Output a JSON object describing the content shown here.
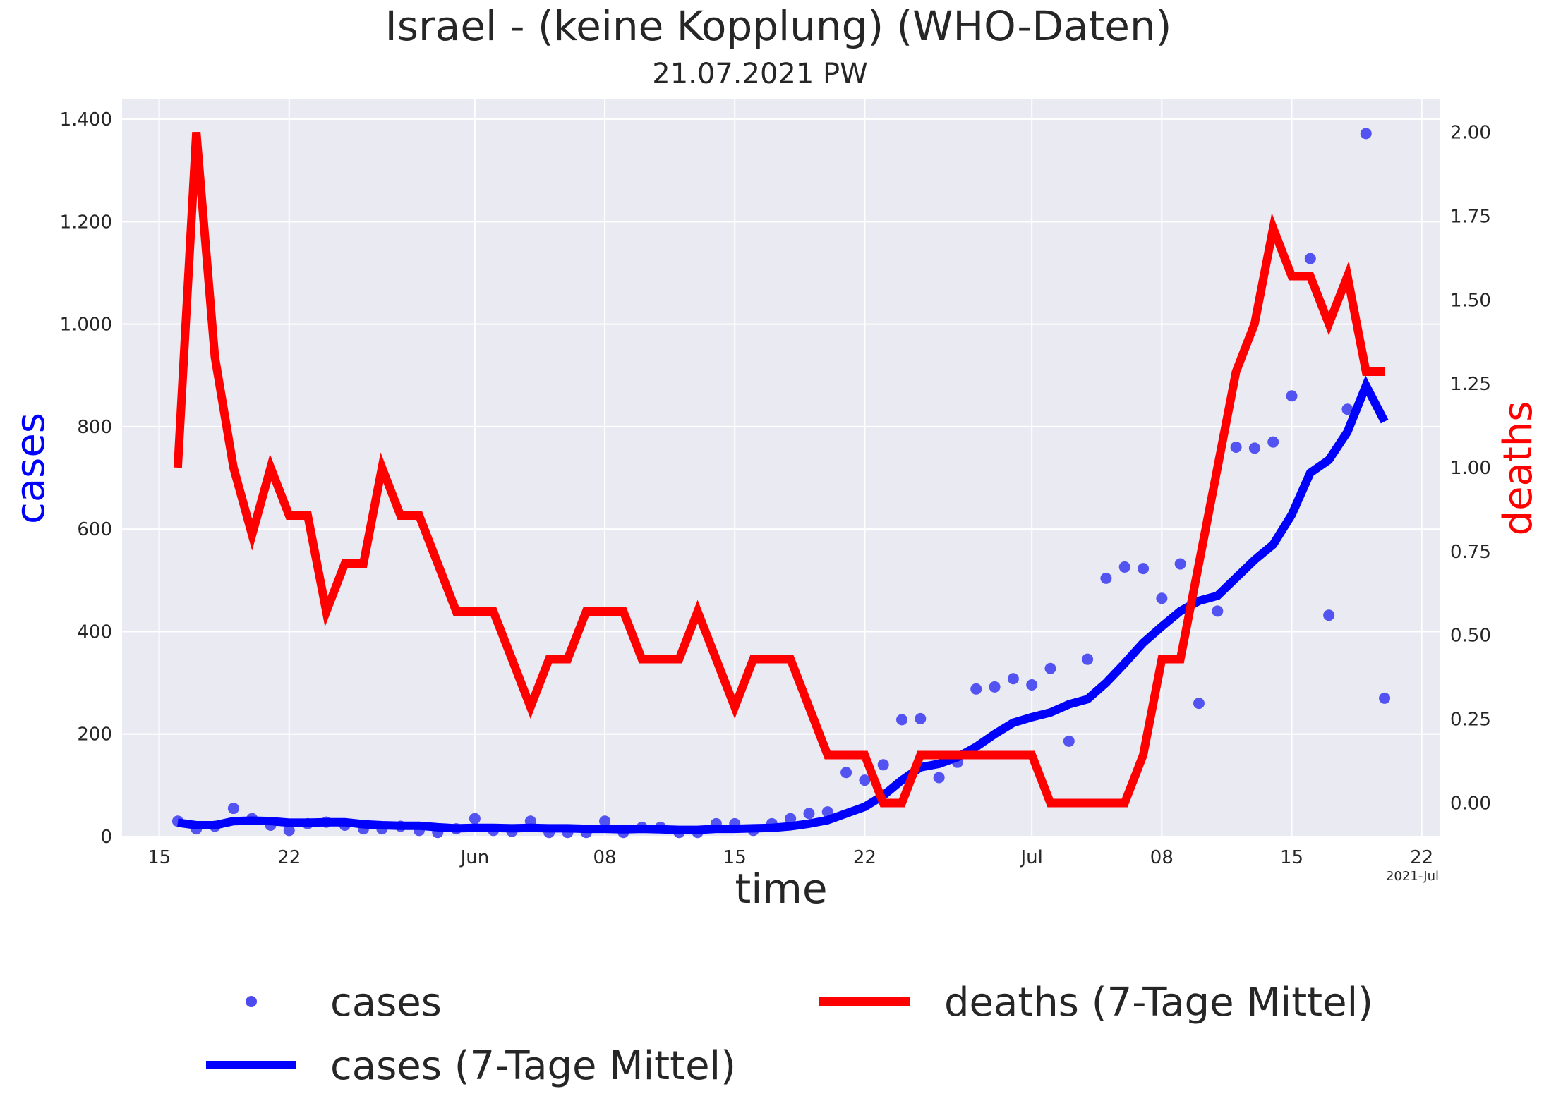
{
  "chart_data": {
    "type": "line",
    "title": "Israel - (keine Kopplung)  (WHO-Daten)",
    "subtitle": "21.07.2021 PW",
    "xlabel": "time",
    "ylabel_left": "cases",
    "ylabel_right": "deaths",
    "x_corner_label": "2021-Jul",
    "x_ticks": [
      {
        "date": "2021-05-15",
        "label": "15"
      },
      {
        "date": "2021-05-22",
        "label": "22"
      },
      {
        "date": "2021-06-01",
        "label": "Jun"
      },
      {
        "date": "2021-06-08",
        "label": "08"
      },
      {
        "date": "2021-06-15",
        "label": "15"
      },
      {
        "date": "2021-06-22",
        "label": "22"
      },
      {
        "date": "2021-07-01",
        "label": "Jul"
      },
      {
        "date": "2021-07-08",
        "label": "08"
      },
      {
        "date": "2021-07-15",
        "label": "15"
      },
      {
        "date": "2021-07-22",
        "label": "22"
      }
    ],
    "xlim": [
      "2021-05-13",
      "2021-07-23"
    ],
    "y_left": {
      "lim": [
        0,
        1440
      ],
      "ticks": [
        0,
        200,
        400,
        600,
        800,
        1000,
        1200,
        1400
      ],
      "tick_labels": [
        "0",
        "200",
        "400",
        "600",
        "800",
        "1.000",
        "1.200",
        "1.400"
      ]
    },
    "y_right": {
      "lim": [
        -0.1,
        2.1
      ],
      "ticks": [
        0.0,
        0.25,
        0.5,
        0.75,
        1.0,
        1.25,
        1.5,
        1.75,
        2.0
      ],
      "tick_labels": [
        "0.00",
        "0.25",
        "0.50",
        "0.75",
        "1.00",
        "1.25",
        "1.50",
        "1.75",
        "2.00"
      ]
    },
    "grid": true,
    "legend_position": "bottom",
    "colors": {
      "cases_dots": "#4b4bf0",
      "cases_avg": "#0000ff",
      "deaths_avg": "#ff0000",
      "plot_bg": "#eaeaf2",
      "grid": "#ffffff"
    },
    "series": [
      {
        "name": "cases",
        "kind": "scatter",
        "axis": "left",
        "x": [
          "2021-05-16",
          "2021-05-17",
          "2021-05-18",
          "2021-05-19",
          "2021-05-20",
          "2021-05-21",
          "2021-05-22",
          "2021-05-23",
          "2021-05-24",
          "2021-05-25",
          "2021-05-26",
          "2021-05-27",
          "2021-05-28",
          "2021-05-29",
          "2021-05-30",
          "2021-05-31",
          "2021-06-01",
          "2021-06-02",
          "2021-06-03",
          "2021-06-04",
          "2021-06-05",
          "2021-06-06",
          "2021-06-07",
          "2021-06-08",
          "2021-06-09",
          "2021-06-10",
          "2021-06-11",
          "2021-06-12",
          "2021-06-13",
          "2021-06-14",
          "2021-06-15",
          "2021-06-16",
          "2021-06-17",
          "2021-06-18",
          "2021-06-19",
          "2021-06-20",
          "2021-06-21",
          "2021-06-22",
          "2021-06-23",
          "2021-06-24",
          "2021-06-25",
          "2021-06-26",
          "2021-06-27",
          "2021-06-28",
          "2021-06-29",
          "2021-06-30",
          "2021-07-01",
          "2021-07-02",
          "2021-07-03",
          "2021-07-04",
          "2021-07-05",
          "2021-07-06",
          "2021-07-07",
          "2021-07-08",
          "2021-07-09",
          "2021-07-10",
          "2021-07-11",
          "2021-07-12",
          "2021-07-13",
          "2021-07-14",
          "2021-07-15",
          "2021-07-16",
          "2021-07-17",
          "2021-07-18",
          "2021-07-19",
          "2021-07-20"
        ],
        "values": [
          30,
          15,
          20,
          55,
          35,
          22,
          12,
          25,
          28,
          22,
          15,
          15,
          20,
          12,
          8,
          15,
          35,
          12,
          10,
          30,
          8,
          8,
          8,
          30,
          8,
          18,
          18,
          8,
          8,
          25,
          25,
          12,
          25,
          35,
          45,
          48,
          125,
          110,
          140,
          228,
          230,
          115,
          145,
          288,
          292,
          308,
          296,
          328,
          186,
          346,
          504,
          526,
          523,
          465,
          532,
          260,
          440,
          760,
          758,
          770,
          860,
          1128,
          432,
          834,
          1372,
          270
        ]
      },
      {
        "name": "cases (7-Tage Mittel)",
        "kind": "line",
        "axis": "left",
        "x": [
          "2021-05-16",
          "2021-05-17",
          "2021-05-18",
          "2021-05-19",
          "2021-05-20",
          "2021-05-21",
          "2021-05-22",
          "2021-05-23",
          "2021-05-24",
          "2021-05-25",
          "2021-05-26",
          "2021-05-27",
          "2021-05-28",
          "2021-05-29",
          "2021-05-30",
          "2021-05-31",
          "2021-06-01",
          "2021-06-02",
          "2021-06-03",
          "2021-06-04",
          "2021-06-05",
          "2021-06-06",
          "2021-06-07",
          "2021-06-08",
          "2021-06-09",
          "2021-06-10",
          "2021-06-11",
          "2021-06-12",
          "2021-06-13",
          "2021-06-14",
          "2021-06-15",
          "2021-06-16",
          "2021-06-17",
          "2021-06-18",
          "2021-06-19",
          "2021-06-20",
          "2021-06-21",
          "2021-06-22",
          "2021-06-23",
          "2021-06-24",
          "2021-06-25",
          "2021-06-26",
          "2021-06-27",
          "2021-06-28",
          "2021-06-29",
          "2021-06-30",
          "2021-07-01",
          "2021-07-02",
          "2021-07-03",
          "2021-07-04",
          "2021-07-05",
          "2021-07-06",
          "2021-07-07",
          "2021-07-08",
          "2021-07-09",
          "2021-07-10",
          "2021-07-11",
          "2021-07-12",
          "2021-07-13",
          "2021-07-14",
          "2021-07-15",
          "2021-07-16",
          "2021-07-17",
          "2021-07-18",
          "2021-07-19",
          "2021-07-20"
        ],
        "values": [
          27,
          22,
          22,
          30,
          31,
          30,
          27,
          27,
          28,
          28,
          24,
          22,
          21,
          21,
          18,
          16,
          17,
          17,
          16,
          17,
          16,
          16,
          15,
          15,
          14,
          15,
          14,
          13,
          13,
          15,
          15,
          16,
          17,
          20,
          25,
          32,
          45,
          58,
          80,
          110,
          135,
          142,
          155,
          175,
          200,
          222,
          233,
          242,
          258,
          268,
          300,
          338,
          378,
          410,
          440,
          460,
          470,
          505,
          540,
          570,
          628,
          710,
          735,
          790,
          880,
          810
        ]
      },
      {
        "name": "deaths (7-Tage Mittel)",
        "kind": "line",
        "axis": "right",
        "x": [
          "2021-05-16",
          "2021-05-17",
          "2021-05-18",
          "2021-05-19",
          "2021-05-20",
          "2021-05-21",
          "2021-05-22",
          "2021-05-23",
          "2021-05-24",
          "2021-05-25",
          "2021-05-26",
          "2021-05-27",
          "2021-05-28",
          "2021-05-29",
          "2021-05-30",
          "2021-05-31",
          "2021-06-01",
          "2021-06-02",
          "2021-06-03",
          "2021-06-04",
          "2021-06-05",
          "2021-06-06",
          "2021-06-07",
          "2021-06-08",
          "2021-06-09",
          "2021-06-10",
          "2021-06-11",
          "2021-06-12",
          "2021-06-13",
          "2021-06-14",
          "2021-06-15",
          "2021-06-16",
          "2021-06-17",
          "2021-06-18",
          "2021-06-19",
          "2021-06-20",
          "2021-06-21",
          "2021-06-22",
          "2021-06-23",
          "2021-06-24",
          "2021-06-25",
          "2021-06-26",
          "2021-06-27",
          "2021-06-28",
          "2021-06-29",
          "2021-06-30",
          "2021-07-01",
          "2021-07-02",
          "2021-07-03",
          "2021-07-04",
          "2021-07-05",
          "2021-07-06",
          "2021-07-07",
          "2021-07-08",
          "2021-07-09",
          "2021-07-10",
          "2021-07-11",
          "2021-07-12",
          "2021-07-13",
          "2021-07-14",
          "2021-07-15",
          "2021-07-16",
          "2021-07-17",
          "2021-07-18",
          "2021-07-19",
          "2021-07-20"
        ],
        "values": [
          1.0,
          2.0,
          1.33,
          1.0,
          0.8,
          1.0,
          0.857,
          0.857,
          0.571,
          0.714,
          0.714,
          1.0,
          0.857,
          0.857,
          0.714,
          0.571,
          0.571,
          0.571,
          0.429,
          0.286,
          0.429,
          0.429,
          0.571,
          0.571,
          0.571,
          0.429,
          0.429,
          0.429,
          0.571,
          0.429,
          0.286,
          0.429,
          0.429,
          0.429,
          0.286,
          0.143,
          0.143,
          0.143,
          0.0,
          0.0,
          0.143,
          0.143,
          0.143,
          0.143,
          0.143,
          0.143,
          0.143,
          0.0,
          0.0,
          0.0,
          0.0,
          0.0,
          0.143,
          0.429,
          0.429,
          0.714,
          1.0,
          1.286,
          1.429,
          1.714,
          1.571,
          1.571,
          1.429,
          1.571,
          1.286,
          1.286
        ]
      }
    ]
  }
}
